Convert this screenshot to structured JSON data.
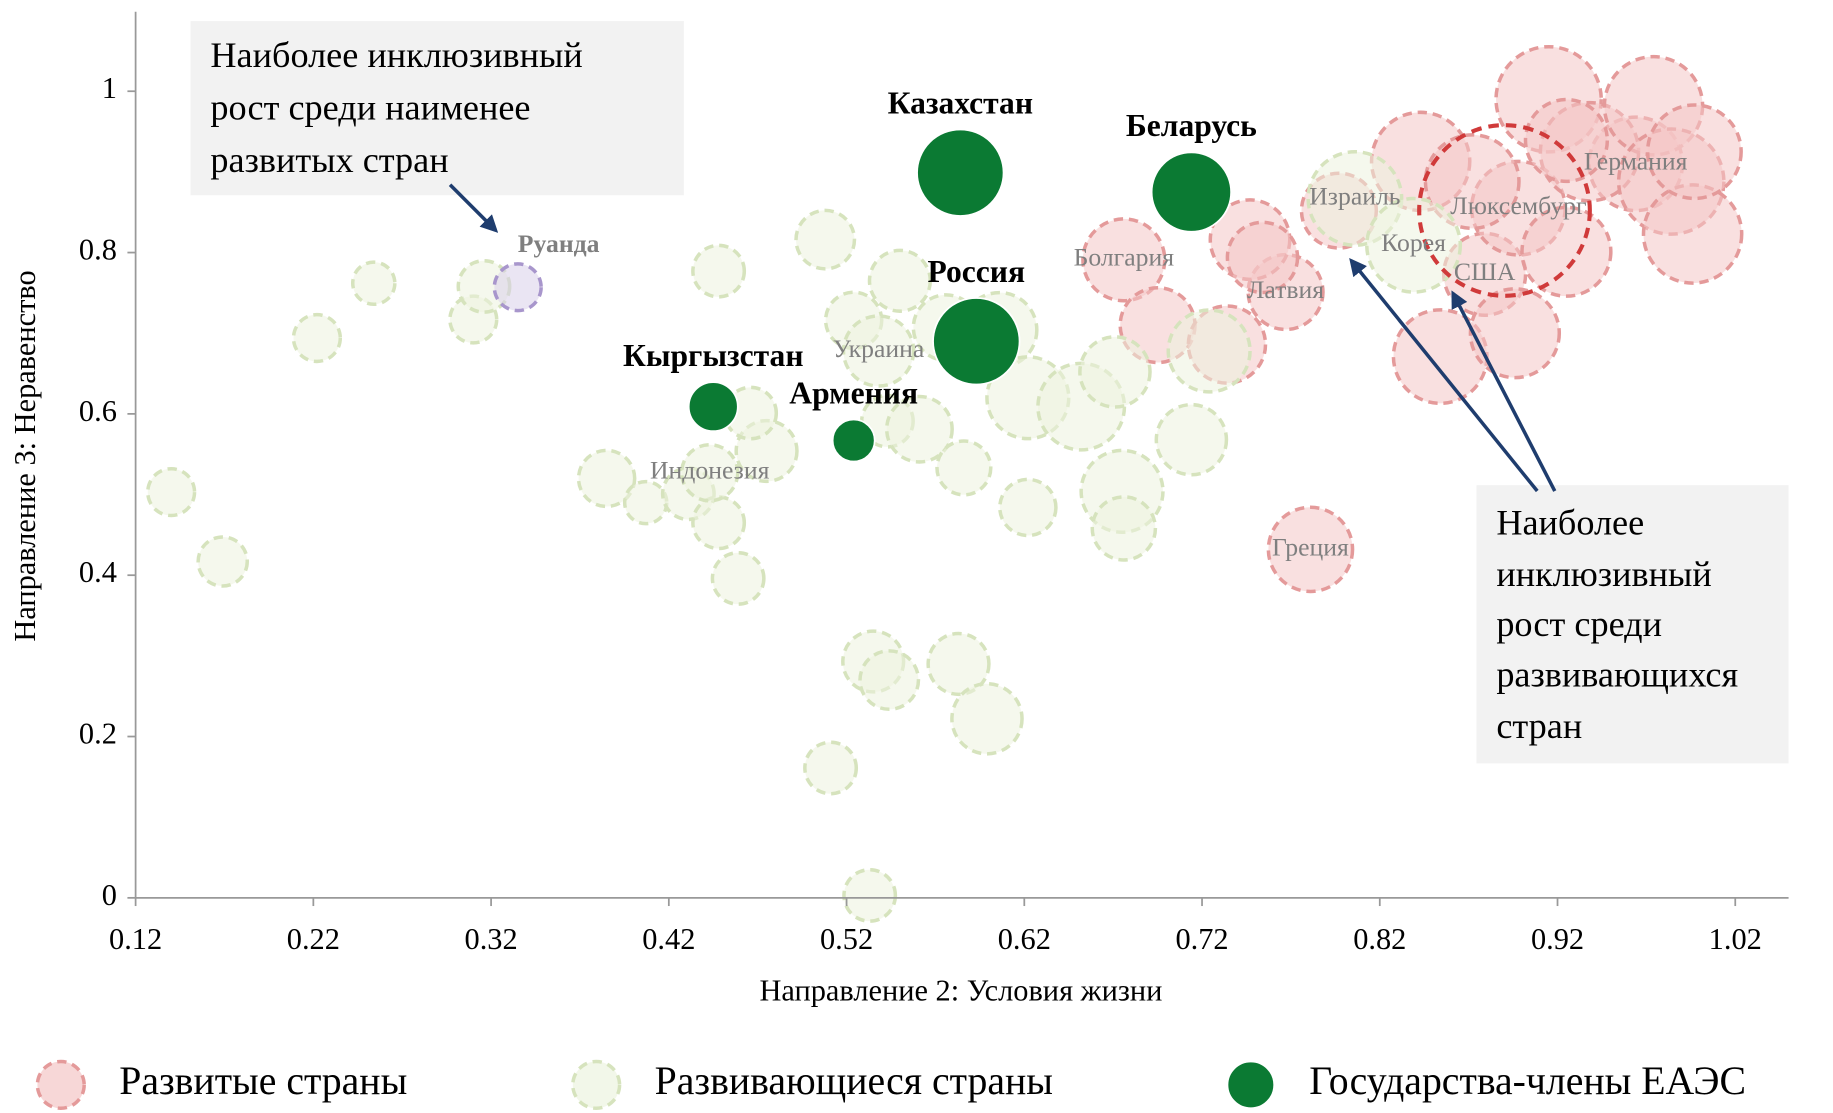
{
  "chart_data": {
    "type": "bubble",
    "x_label": "Направление 2: Условия жизни",
    "y_label": "Направление 3: Неравенство",
    "xlim": [
      0.12,
      1.05
    ],
    "ylim": [
      0,
      1.1
    ],
    "xticks": [
      0.12,
      0.22,
      0.32,
      0.42,
      0.52,
      0.62,
      0.72,
      0.82,
      0.92,
      1.02
    ],
    "yticks": [
      0,
      0.2,
      0.4,
      0.6,
      0.8,
      1
    ],
    "annotations": [
      {
        "lines": [
          "Наиболее инклюзивный",
          "рост среди наименее",
          "развитых стран"
        ]
      },
      {
        "lines": [
          "Наиболее",
          "инклюзивный",
          "рост среди",
          "развивающихся",
          "стран"
        ]
      }
    ],
    "series": [
      {
        "name": "Развитые страны",
        "color": "#f4c6c6",
        "stroke": "#e49a9a",
        "legend": true,
        "label_position": "center",
        "label_bold": false,
        "x": [
          0.676,
          0.767,
          0.781,
          0.879,
          0.898,
          0.964,
          0.695,
          0.734,
          0.747,
          0.754,
          0.797,
          0.843,
          0.854,
          0.872,
          0.896,
          0.915,
          0.925,
          0.938,
          0.974,
          0.984,
          0.996,
          0.997,
          0.925
        ],
        "y": [
          0.791,
          0.751,
          0.432,
          0.773,
          0.855,
          0.91,
          0.71,
          0.686,
          0.816,
          0.794,
          0.852,
          0.913,
          0.671,
          0.888,
          0.7,
          0.99,
          0.801,
          0.925,
          0.982,
          0.888,
          0.823,
          0.925,
          0.939
        ],
        "sizes": [
          35,
          32,
          36,
          35,
          40,
          40,
          32,
          33,
          34,
          30,
          32,
          42,
          40,
          40,
          38,
          45,
          38,
          42,
          42,
          45,
          42,
          40,
          35
        ],
        "labels": [
          "Болгария",
          "Латвия",
          "Греция",
          "США",
          "Люксембург",
          "Германия",
          null,
          null,
          null,
          null,
          null,
          null,
          null,
          null,
          null,
          null,
          null,
          null,
          null,
          null,
          null,
          null,
          null
        ]
      },
      {
        "name": "Развивающиеся страны",
        "color": "#edf3df",
        "stroke": "#d6e3bd",
        "legend": true,
        "label_position": "center",
        "label_bold": false,
        "x": [
          0.14,
          0.169,
          0.222,
          0.254,
          0.31,
          0.316,
          0.385,
          0.407,
          0.431,
          0.448,
          0.459,
          0.448,
          0.475,
          0.466,
          0.508,
          0.524,
          0.55,
          0.543,
          0.561,
          0.576,
          0.586,
          0.606,
          0.622,
          0.622,
          0.652,
          0.671,
          0.675,
          0.676,
          0.714,
          0.724,
          0.535,
          0.544,
          0.583,
          0.599,
          0.511,
          0.533,
          0.538,
          0.443,
          0.806,
          0.839
        ],
        "y": [
          0.503,
          0.417,
          0.694,
          0.762,
          0.717,
          0.758,
          0.52,
          0.49,
          0.501,
          0.465,
          0.396,
          0.777,
          0.554,
          0.601,
          0.816,
          0.716,
          0.765,
          0.591,
          0.581,
          0.707,
          0.533,
          0.704,
          0.484,
          0.62,
          0.609,
          0.652,
          0.504,
          0.458,
          0.568,
          0.678,
          0.293,
          0.27,
          0.29,
          0.222,
          0.161,
          0.003,
          0.678,
          0.527,
          0.867,
          0.809
        ],
        "sizes": [
          20,
          21,
          20,
          18,
          20,
          22,
          24,
          18,
          22,
          22,
          22,
          22,
          26,
          22,
          25,
          24,
          26,
          22,
          28,
          28,
          23,
          32,
          24,
          35,
          37,
          30,
          35,
          27,
          30,
          35,
          26,
          25,
          26,
          30,
          22,
          22,
          30,
          24,
          40,
          40
        ],
        "labels": [
          null,
          null,
          null,
          null,
          null,
          null,
          null,
          null,
          null,
          null,
          null,
          null,
          null,
          null,
          null,
          null,
          null,
          null,
          null,
          null,
          null,
          null,
          null,
          null,
          null,
          null,
          null,
          null,
          null,
          null,
          null,
          null,
          null,
          null,
          null,
          null,
          "Украина",
          "Индонезия",
          "Израиль",
          "Корея"
        ]
      },
      {
        "name": "Государства-члены ЕАЭС",
        "color": "#0b7a33",
        "stroke": "#ffffff",
        "legend": true,
        "label_position": "above",
        "label_bold": true,
        "x": [
          0.584,
          0.714,
          0.593,
          0.445,
          0.524
        ],
        "y": [
          0.899,
          0.875,
          0.69,
          0.609,
          0.567
        ],
        "sizes": [
          37,
          34,
          37,
          21,
          18
        ],
        "labels": [
          "Казахстан",
          "Беларусь",
          "Россия",
          "Кыргызстан",
          "Армения"
        ]
      },
      {
        "name": "Руанда",
        "color": "#d9d0ea",
        "stroke": "#a896cc",
        "legend": false,
        "label_position": "above",
        "label_bold": true,
        "x": [
          0.335
        ],
        "y": [
          0.757
        ],
        "sizes": [
          20
        ],
        "labels": [
          null
        ]
      }
    ]
  }
}
